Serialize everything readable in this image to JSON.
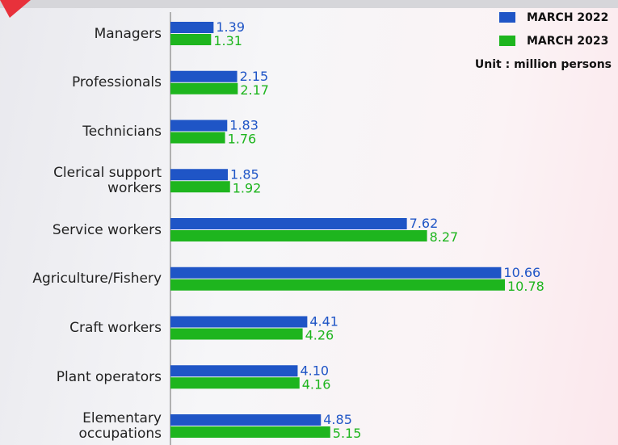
{
  "chart_data": {
    "type": "bar",
    "orientation": "horizontal",
    "categories": [
      "Managers",
      "Professionals",
      "Technicians",
      "Clerical support\nworkers",
      "Service workers",
      "Agriculture/Fishery",
      "Craft workers",
      "Plant operators",
      "Elementary\noccupations"
    ],
    "series": [
      {
        "name": "MARCH 2022",
        "color": "#1f55c6",
        "values": [
          1.39,
          2.15,
          1.83,
          1.85,
          7.62,
          10.66,
          4.41,
          4.1,
          4.85
        ],
        "value_labels": [
          "1.39",
          "2.15",
          "1.83",
          "1.85",
          "7.62",
          "10.66",
          "4.41",
          "4.10",
          "4.85"
        ]
      },
      {
        "name": "MARCH 2023",
        "color": "#1eb51e",
        "values": [
          1.31,
          2.17,
          1.76,
          1.92,
          8.27,
          10.78,
          4.26,
          4.16,
          5.15
        ],
        "value_labels": [
          "1.31",
          "2.17",
          "1.76",
          "1.92",
          "8.27",
          "10.78",
          "4.26",
          "4.16",
          "5.15"
        ]
      }
    ],
    "unit_note": "Unit : million persons",
    "legend": "top-right"
  }
}
